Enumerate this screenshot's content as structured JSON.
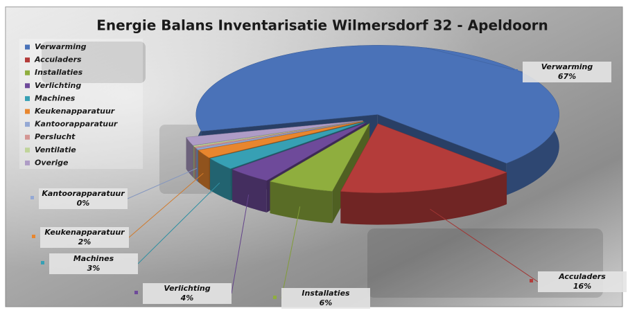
{
  "chart_data": {
    "type": "pie",
    "title": "Energie Balans Inventarisatie Wilmersdorf 32 - Apeldoorn",
    "categories": [
      "Verwarming",
      "Acculaders",
      "Installaties",
      "Verlichting",
      "Machines",
      "Keukenapparatuur",
      "Kantoorapparatuur",
      "Perslucht",
      "Ventilatie",
      "Overige"
    ],
    "values": [
      67,
      16,
      6,
      4,
      3,
      2,
      0.4,
      0.3,
      0.3,
      2
    ],
    "value_labels": [
      "67%",
      "16%",
      "6%",
      "4%",
      "3%",
      "2%",
      "0%",
      null,
      null,
      null
    ],
    "colors": [
      "#4a72b8",
      "#b43c3a",
      "#8fae3e",
      "#6e4a9a",
      "#37a0b4",
      "#e8862e",
      "#94a8d4",
      "#d49694",
      "#c0d49a",
      "#ae9cc6"
    ],
    "legend": "top-left"
  }
}
